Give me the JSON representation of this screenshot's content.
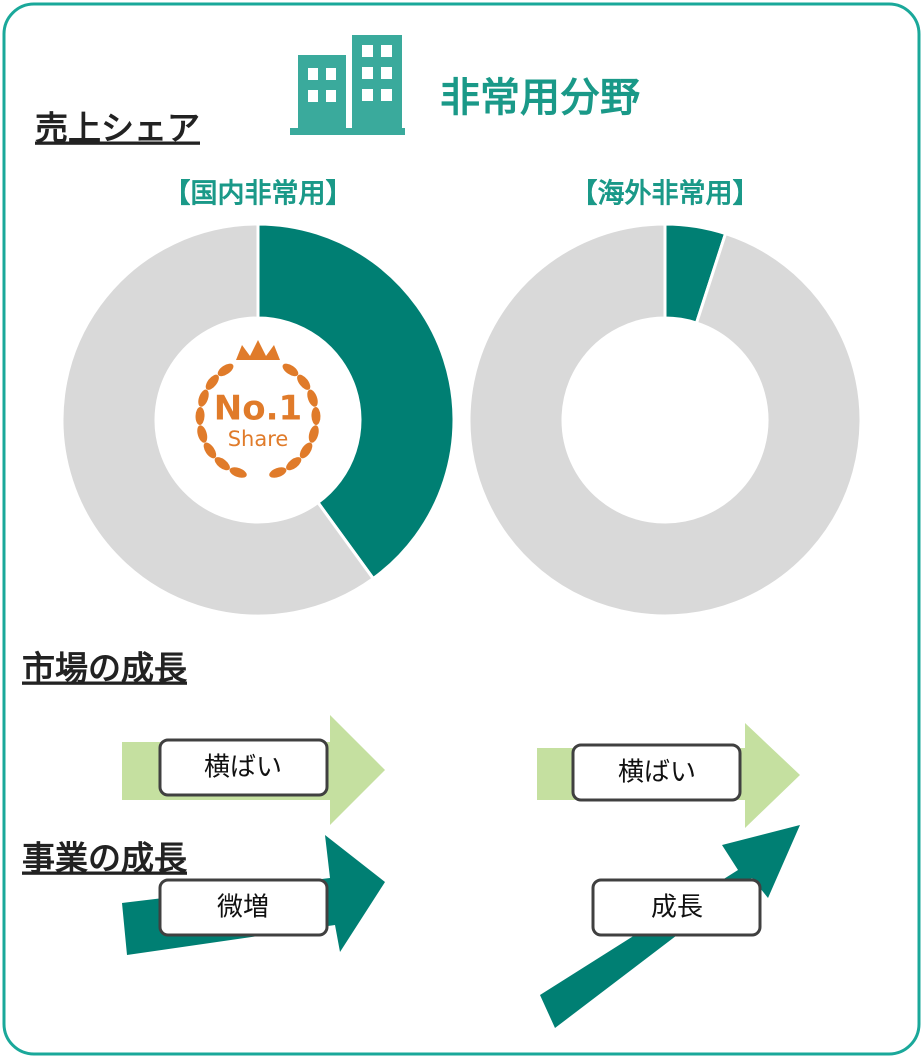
{
  "header": {
    "title": "非常用分野"
  },
  "sections": {
    "share": "売上シェア",
    "market": "市場の成長",
    "business": "事業の成長"
  },
  "chart_data": [
    {
      "type": "donut",
      "title": "【国内非常用】",
      "values": [
        40,
        60
      ],
      "colors": [
        "#007f73",
        "#d9d9d9"
      ],
      "badge": {
        "rank": "No.1",
        "label": "Share"
      }
    },
    {
      "type": "donut",
      "title": "【海外非常用】",
      "values": [
        5,
        95
      ],
      "colors": [
        "#007f73",
        "#d9d9d9"
      ]
    }
  ],
  "market_growth": [
    "横ばい",
    "横ばい"
  ],
  "business_growth": [
    "微増",
    "成長"
  ]
}
